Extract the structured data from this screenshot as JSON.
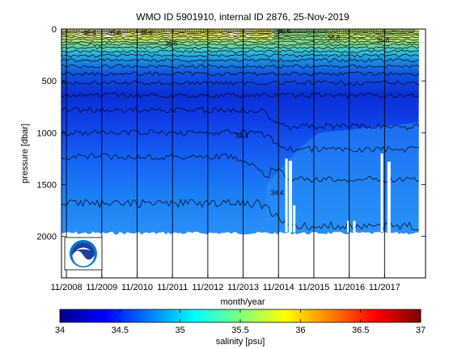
{
  "chart_data": {
    "type": "heatmap",
    "title": "WMO ID 5901910, internal ID 2876, 25-Nov-2019",
    "xlabel": "month/year",
    "ylabel": "pressure [dbar]",
    "x_ticks": [
      "11/2008",
      "11/2009",
      "11/2010",
      "11/2011",
      "11/2012",
      "11/2013",
      "11/2014",
      "11/2015",
      "11/2016",
      "11/2017"
    ],
    "y_ticks": [
      "0",
      "500",
      "1000",
      "1500",
      "2000"
    ],
    "y_tick_values": [
      0,
      500,
      1000,
      1500,
      2000
    ],
    "ylim": [
      0,
      2400
    ],
    "y_reversed": true,
    "xlim_years": [
      2008.7,
      2019.0
    ],
    "x_tick_years": [
      2008.84,
      2009.84,
      2010.84,
      2011.84,
      2012.84,
      2013.84,
      2014.84,
      2015.84,
      2016.84,
      2017.84
    ],
    "vertical_gridlines": true,
    "contour_labels": [
      {
        "text": "35.6",
        "x_year": 2009.5,
        "p": 60
      },
      {
        "text": "35.6",
        "x_year": 2010.2,
        "p": 60
      },
      {
        "text": "35.6",
        "x_year": 2011.1,
        "p": 60
      },
      {
        "text": "35.6",
        "x_year": 2011.8,
        "p": 160
      },
      {
        "text": "35.6",
        "x_year": 2015.0,
        "p": 40
      },
      {
        "text": "35.6",
        "x_year": 2016.4,
        "p": 110
      },
      {
        "text": "35.6",
        "x_year": 2017.8,
        "p": 130
      },
      {
        "text": "34.4",
        "x_year": 2013.8,
        "p": 1050
      },
      {
        "text": "34.4",
        "x_year": 2014.8,
        "p": 1600
      }
    ],
    "colorbar": {
      "label": "salinity [psu]",
      "min": 34,
      "max": 37,
      "ticks": [
        "34",
        "34.5",
        "35",
        "35.5",
        "36",
        "36.5",
        "37"
      ],
      "colormap": "jet"
    },
    "logo": "noaa-logo"
  }
}
